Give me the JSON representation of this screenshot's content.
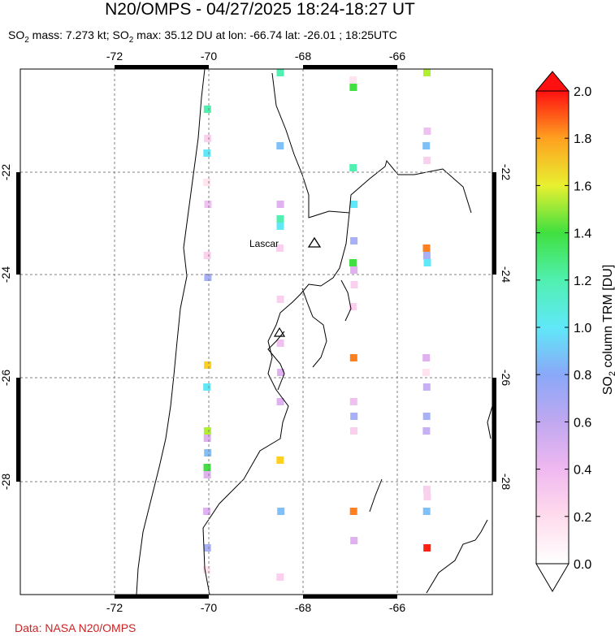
{
  "title": "N20/OMPS - 04/27/2025 18:24-18:27 UT",
  "subtitle": {
    "prefix": "SO",
    "sub": "2",
    "mass": " mass: 7.273 kt; SO",
    "sub2": "2",
    "rest": " max: 35.12 DU at lon: -66.74 lat: -26.01 ; 18:25UTC"
  },
  "credit": "Data: NASA N20/OMPS",
  "map": {
    "lon_ticks": [
      "-72",
      "-70",
      "-68",
      "-66"
    ],
    "lat_ticks": [
      "-22",
      "-24",
      "-26",
      "-28"
    ],
    "volcano": "Lascar"
  },
  "colorbar": {
    "labels": [
      "2.0",
      "1.8",
      "1.6",
      "1.4",
      "1.2",
      "1.0",
      "0.8",
      "0.6",
      "0.4",
      "0.2",
      "0.0"
    ],
    "axis_title": "SO",
    "axis_sub": "2",
    "axis_rest": " column TRM [DU]"
  }
}
